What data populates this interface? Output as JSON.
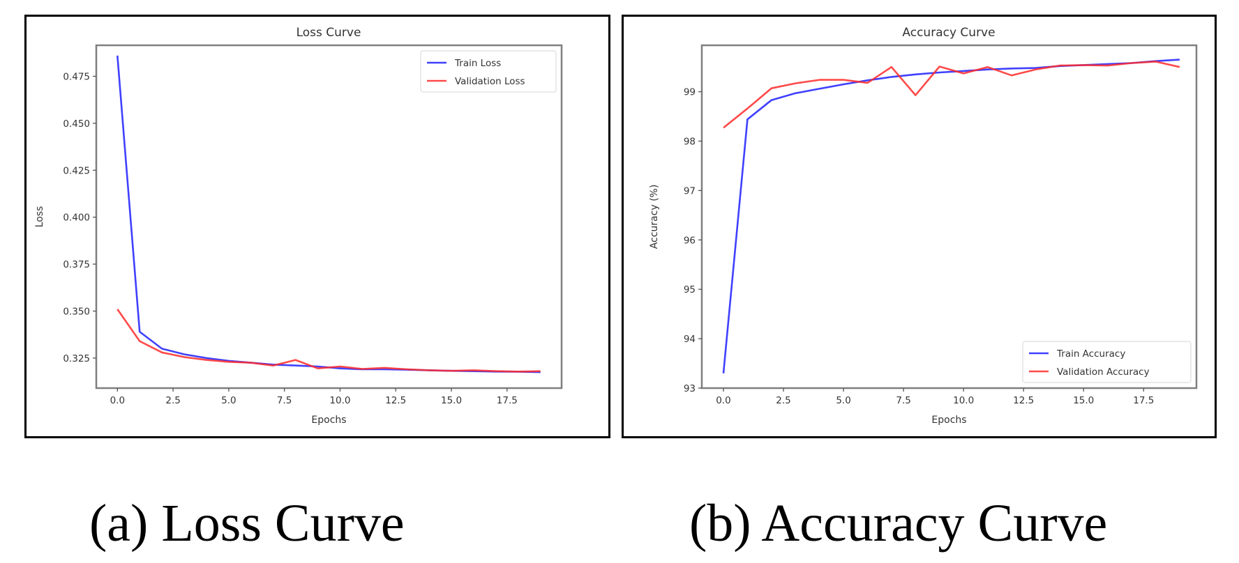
{
  "captions": {
    "loss": "(a) Loss Curve",
    "accuracy": "(b) Accuracy Curve"
  },
  "colors": {
    "train": "#1f1fff",
    "validation": "#ff2a2a"
  },
  "chart_data": [
    {
      "type": "line",
      "title": "Loss Curve",
      "xlabel": "Epochs",
      "ylabel": "Loss",
      "x": [
        0,
        1,
        2,
        3,
        4,
        5,
        6,
        7,
        8,
        9,
        10,
        11,
        12,
        13,
        14,
        15,
        16,
        17,
        18,
        19
      ],
      "xticks": [
        "0.0",
        "2.5",
        "5.0",
        "7.5",
        "10.0",
        "12.5",
        "15.0",
        "17.5"
      ],
      "yticks": [
        "0.325",
        "0.350",
        "0.375",
        "0.400",
        "0.425",
        "0.450",
        "0.475"
      ],
      "ylim": [
        0.309,
        0.4915
      ],
      "xlim": [
        -0.95,
        19.95
      ],
      "grid": false,
      "legend_position": "upper right",
      "series": [
        {
          "name": "Train Loss",
          "color": "#1f1fff",
          "values": [
            0.486,
            0.339,
            0.33,
            0.327,
            0.325,
            0.3235,
            0.3225,
            0.3215,
            0.321,
            0.3205,
            0.3195,
            0.319,
            0.319,
            0.3188,
            0.3185,
            0.3182,
            0.318,
            0.3178,
            0.3177,
            0.3175
          ]
        },
        {
          "name": "Validation Loss",
          "color": "#ff2a2a",
          "values": [
            0.351,
            0.334,
            0.328,
            0.3255,
            0.324,
            0.323,
            0.3225,
            0.321,
            0.324,
            0.3195,
            0.3205,
            0.3192,
            0.3198,
            0.319,
            0.3185,
            0.3182,
            0.3185,
            0.318,
            0.3178,
            0.318
          ]
        }
      ]
    },
    {
      "type": "line",
      "title": "Accuracy Curve",
      "xlabel": "Epochs",
      "ylabel": "Accuracy (%)",
      "x": [
        0,
        1,
        2,
        3,
        4,
        5,
        6,
        7,
        8,
        9,
        10,
        11,
        12,
        13,
        14,
        15,
        16,
        17,
        18,
        19
      ],
      "xticks": [
        "0.0",
        "2.5",
        "5.0",
        "7.5",
        "10.0",
        "12.5",
        "15.0",
        "17.5"
      ],
      "yticks": [
        "93",
        "94",
        "95",
        "96",
        "97",
        "98",
        "99"
      ],
      "ylim": [
        93.0,
        99.94
      ],
      "xlim": [
        -0.9,
        19.7
      ],
      "grid": false,
      "legend_position": "lower right",
      "series": [
        {
          "name": "Train Accuracy",
          "color": "#1f1fff",
          "values": [
            93.3,
            98.44,
            98.83,
            98.97,
            99.06,
            99.15,
            99.23,
            99.3,
            99.35,
            99.39,
            99.42,
            99.45,
            99.47,
            99.48,
            99.52,
            99.54,
            99.56,
            99.58,
            99.62,
            99.65
          ]
        },
        {
          "name": "Validation Accuracy",
          "color": "#ff2a2a",
          "values": [
            98.27,
            98.66,
            99.07,
            99.17,
            99.24,
            99.24,
            99.18,
            99.5,
            98.93,
            99.51,
            99.37,
            99.5,
            99.33,
            99.45,
            99.53,
            99.54,
            99.53,
            99.58,
            99.61,
            99.5
          ]
        }
      ]
    }
  ]
}
